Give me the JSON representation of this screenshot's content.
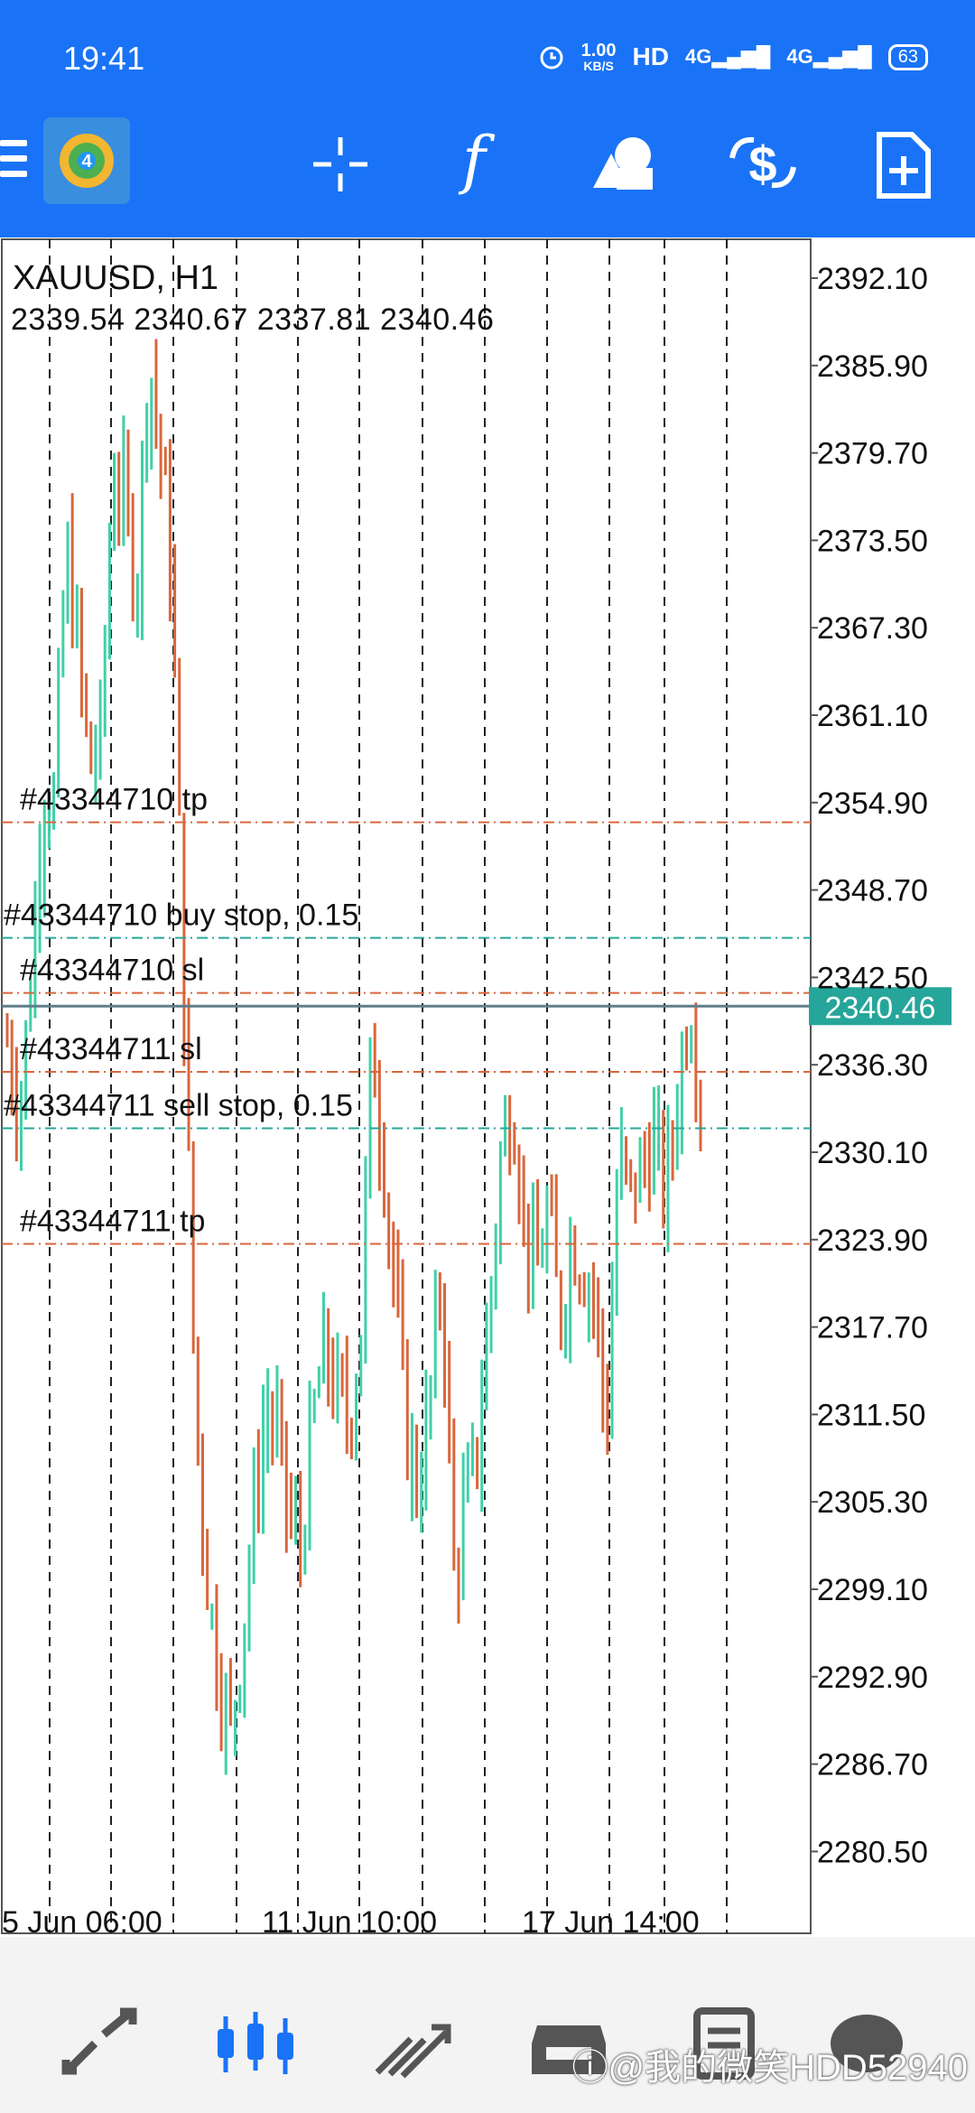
{
  "status_bar": {
    "time": "19:41",
    "net_speed_value": "1.00",
    "net_speed_unit": "KB/S",
    "hd_label": "HD",
    "signal_1": "4G",
    "signal_2": "4G",
    "battery": "63"
  },
  "toolbar": {
    "indicator_glyph": "f",
    "icons": [
      "menu-icon",
      "metatrader-logo-icon",
      "crosshair-icon",
      "indicators-icon",
      "objects-icon",
      "trade-icon",
      "new-order-icon"
    ]
  },
  "chart": {
    "symbol": "XAUUSD, H1",
    "ohlc": "2339.54 2340.67 2337.81 2340.46",
    "current_price_label": "2340.46",
    "current_price_color": "#26a69a",
    "bull_color": "#40d0a8",
    "bear_color": "#d9663c",
    "sl_tp_line_color": "#d9663c",
    "pending_line_color": "#26a69a",
    "price_axis": [
      "2392.10",
      "2385.90",
      "2379.70",
      "2373.50",
      "2367.30",
      "2361.10",
      "2354.90",
      "2348.70",
      "2342.50",
      "2336.30",
      "2330.10",
      "2323.90",
      "2317.70",
      "2311.50",
      "2305.30",
      "2299.10",
      "2292.90",
      "2286.70",
      "2280.50"
    ],
    "time_axis": [
      "5 Jun 06:00",
      "11 Jun 10:00",
      "17 Jun 14:00"
    ],
    "order_lines": [
      {
        "label": "#43344710 tp",
        "price": 2353.5,
        "kind": "tp"
      },
      {
        "label": "#43344710 buy stop, 0.15",
        "price": 2345.3,
        "kind": "pending"
      },
      {
        "label": "#43344710 sl",
        "price": 2341.4,
        "kind": "sl"
      },
      {
        "label": "#43344711 sl",
        "price": 2335.8,
        "kind": "sl"
      },
      {
        "label": "#43344711 sell stop, 0.15",
        "price": 2331.8,
        "kind": "pending"
      },
      {
        "label": "#43344711 tp",
        "price": 2323.6,
        "kind": "tp"
      }
    ]
  },
  "chart_data": {
    "type": "candlestick",
    "symbol": "XAUUSD",
    "timeframe": "H1",
    "ylim": [
      2280.5,
      2392.1
    ],
    "current_price": 2340.46,
    "x_ticks": [
      "5 Jun 06:00",
      "11 Jun 10:00",
      "17 Jun 14:00"
    ],
    "close_path": [
      2338,
      2333,
      2342,
      2356,
      2355,
      2373,
      2366,
      2357,
      2360,
      2379,
      2376,
      2370,
      2387,
      2380,
      2371,
      2342,
      2312,
      2300,
      2293,
      2289,
      2296,
      2305,
      2312,
      2310,
      2304,
      2302,
      2311,
      2316,
      2313,
      2311,
      2316,
      2338,
      2330,
      2320,
      2310,
      2306,
      2313,
      2322,
      2300,
      2305,
      2309,
      2319,
      2330,
      2334,
      2325,
      2321,
      2326,
      2318,
      2324,
      2322,
      2320,
      2310,
      2330,
      2327,
      2329,
      2331,
      2327,
      2334,
      2341,
      2335
    ],
    "grid_vertical_dashed": true
  },
  "bottom_nav": {
    "items": [
      "quotes-tab",
      "chart-tab",
      "trade-tab",
      "history-tab",
      "messages-tab",
      "settings-tab"
    ],
    "active": "chart-tab",
    "watermark": "ⓘ@我的微笑HDD52940"
  }
}
